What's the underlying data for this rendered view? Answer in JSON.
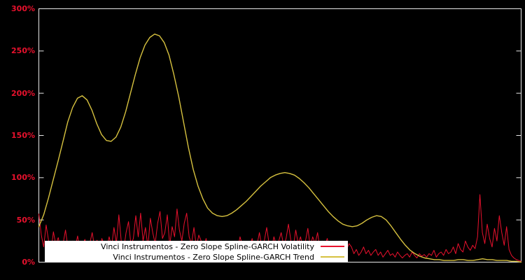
{
  "chart_data": {
    "type": "line",
    "title": "",
    "xlabel": "",
    "ylabel": "",
    "background": "#000000",
    "plot_border_color": "#e8e8e8",
    "grid": false,
    "ylim": [
      0,
      300
    ],
    "y_axis": {
      "tick_labels": [
        "0%",
        "50%",
        "100%",
        "150%",
        "200%",
        "250%",
        "300%"
      ],
      "tick_values": [
        0,
        50,
        100,
        150,
        200,
        250,
        300
      ],
      "label_color": "#e8112d"
    },
    "x_axis": {
      "tick_labels": []
    },
    "legend": {
      "position": "bottom-center",
      "background": "#ffffff",
      "entries": [
        {
          "label": "Vinci Instrumentos - Zero Slope Spline-GARCH Volatility",
          "color": "#e8112d"
        },
        {
          "label": "Vinci Instrumentos - Zero Slope Spline-GARCH Trend",
          "color": "#d6c13f"
        }
      ]
    },
    "series": [
      {
        "name": "Vinci Instrumentos - Zero Slope Spline-GARCH Volatility",
        "color": "#e8112d",
        "stroke_width": 1,
        "values": [
          57,
          32,
          18,
          44,
          26,
          12,
          36,
          21,
          29,
          15,
          22,
          38,
          17,
          10,
          25,
          18,
          31,
          12,
          20,
          27,
          14,
          22,
          35,
          18,
          26,
          12,
          28,
          20,
          15,
          30,
          18,
          41,
          22,
          56,
          25,
          15,
          35,
          48,
          20,
          28,
          55,
          30,
          58,
          25,
          41,
          18,
          52,
          35,
          22,
          46,
          60,
          28,
          35,
          56,
          20,
          42,
          30,
          63,
          38,
          25,
          46,
          58,
          30,
          22,
          41,
          18,
          32,
          25,
          15,
          28,
          12,
          20,
          15,
          25,
          10,
          18,
          22,
          14,
          20,
          16,
          18,
          25,
          15,
          30,
          20,
          12,
          24,
          18,
          28,
          15,
          20,
          35,
          18,
          25,
          41,
          22,
          15,
          30,
          20,
          25,
          35,
          20,
          28,
          45,
          25,
          18,
          38,
          22,
          30,
          15,
          25,
          40,
          18,
          30,
          22,
          35,
          15,
          25,
          20,
          28,
          15,
          22,
          12,
          18,
          25,
          10,
          20,
          15,
          22,
          18,
          10,
          15,
          8,
          12,
          18,
          10,
          14,
          8,
          12,
          15,
          8,
          12,
          6,
          10,
          14,
          8,
          10,
          6,
          12,
          8,
          5,
          8,
          10,
          6,
          12,
          8,
          5,
          10,
          7,
          9,
          6,
          10,
          8,
          14,
          6,
          10,
          12,
          8,
          15,
          10,
          12,
          18,
          10,
          22,
          15,
          12,
          25,
          18,
          14,
          20,
          16,
          30,
          80,
          35,
          22,
          45,
          28,
          18,
          40,
          25,
          55,
          35,
          20,
          42,
          15,
          8,
          5,
          3,
          2,
          1
        ]
      },
      {
        "name": "Vinci Instrumentos - Zero Slope Spline-GARCH Trend",
        "color": "#d6c13f",
        "stroke_width": 1.4,
        "values": [
          42,
          56,
          76,
          98,
          120,
          143,
          166,
          183,
          194,
          197,
          192,
          180,
          164,
          151,
          144,
          143,
          148,
          160,
          178,
          200,
          222,
          242,
          257,
          266,
          270,
          268,
          260,
          245,
          222,
          196,
          166,
          136,
          110,
          90,
          75,
          64,
          58,
          55,
          54,
          55,
          58,
          62,
          67,
          72,
          78,
          84,
          90,
          95,
          100,
          103,
          105,
          106,
          105,
          103,
          99,
          94,
          88,
          81,
          74,
          67,
          60,
          54,
          49,
          45,
          43,
          42,
          43,
          46,
          50,
          53,
          55,
          54,
          50,
          43,
          35,
          27,
          20,
          14,
          10,
          7,
          5,
          4,
          3,
          3,
          2,
          2,
          2,
          3,
          3,
          2,
          2,
          3,
          4,
          3,
          3,
          2,
          2,
          2,
          1,
          1,
          0
        ]
      }
    ]
  }
}
